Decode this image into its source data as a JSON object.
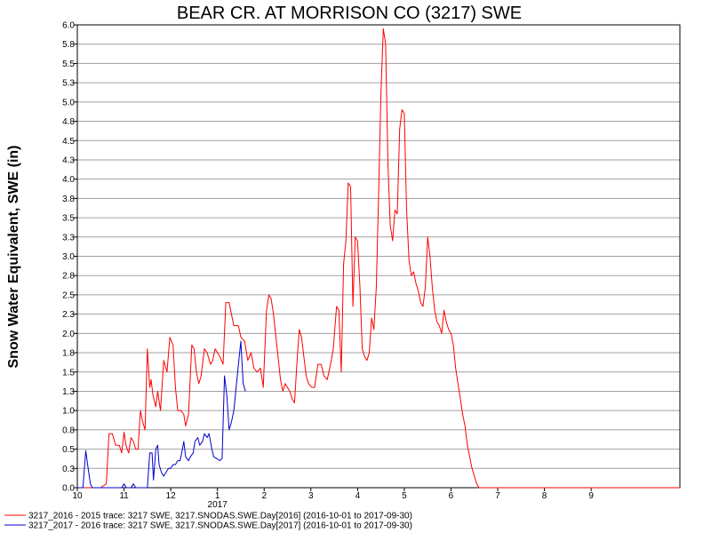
{
  "chart_data": {
    "type": "line",
    "title": "BEAR CR. AT MORRISON CO (3217) SWE",
    "ylabel": "Snow Water Equivalent, SWE (in)",
    "xlabel": "",
    "ylim": [
      0,
      6.0
    ],
    "xlim_month_index": [
      10,
      22.9
    ],
    "y_tick_labels": [
      "0.0",
      "0.3",
      "0.5",
      "0.8",
      "1.0",
      "1.3",
      "1.5",
      "1.8",
      "2.0",
      "2.3",
      "2.5",
      "2.8",
      "3.0",
      "3.3",
      "3.5",
      "3.8",
      "4.0",
      "4.3",
      "4.5",
      "4.8",
      "5.0",
      "5.3",
      "5.5",
      "5.8",
      "6.0"
    ],
    "x_ticks": [
      {
        "x": 10,
        "label": "10"
      },
      {
        "x": 11,
        "label": "11"
      },
      {
        "x": 12,
        "label": "12"
      },
      {
        "x": 13,
        "label": "1"
      },
      {
        "x": 14,
        "label": "2"
      },
      {
        "x": 15,
        "label": "3"
      },
      {
        "x": 16,
        "label": "4"
      },
      {
        "x": 17,
        "label": "5"
      },
      {
        "x": 18,
        "label": "6"
      },
      {
        "x": 19,
        "label": "7"
      },
      {
        "x": 20,
        "label": "8"
      },
      {
        "x": 21,
        "label": "9"
      }
    ],
    "year_label": {
      "x": 13,
      "label": "2017"
    },
    "grid": true,
    "legend_position": "bottom",
    "series": [
      {
        "name": "3217_2016 - 2015 trace: 3217 SWE, 3217.SNODAS.SWE.Day[2016] (2016-10-01 to 2017-09-30)",
        "color": "#ff0000",
        "points": [
          [
            10.0,
            0
          ],
          [
            10.5,
            0
          ],
          [
            10.62,
            0.05
          ],
          [
            10.68,
            0.7
          ],
          [
            10.75,
            0.7
          ],
          [
            10.82,
            0.55
          ],
          [
            10.9,
            0.55
          ],
          [
            10.95,
            0.45
          ],
          [
            11.0,
            0.72
          ],
          [
            11.04,
            0.55
          ],
          [
            11.1,
            0.45
          ],
          [
            11.15,
            0.65
          ],
          [
            11.2,
            0.6
          ],
          [
            11.25,
            0.5
          ],
          [
            11.3,
            0.5
          ],
          [
            11.35,
            1.0
          ],
          [
            11.4,
            0.85
          ],
          [
            11.45,
            0.75
          ],
          [
            11.5,
            1.8
          ],
          [
            11.55,
            1.3
          ],
          [
            11.58,
            1.4
          ],
          [
            11.62,
            1.2
          ],
          [
            11.68,
            1.05
          ],
          [
            11.72,
            1.25
          ],
          [
            11.78,
            1.0
          ],
          [
            11.85,
            1.65
          ],
          [
            11.92,
            1.5
          ],
          [
            11.98,
            1.95
          ],
          [
            12.05,
            1.85
          ],
          [
            12.1,
            1.3
          ],
          [
            12.15,
            1.0
          ],
          [
            12.22,
            1.0
          ],
          [
            12.28,
            0.95
          ],
          [
            12.32,
            0.8
          ],
          [
            12.38,
            0.95
          ],
          [
            12.45,
            1.85
          ],
          [
            12.5,
            1.8
          ],
          [
            12.55,
            1.5
          ],
          [
            12.6,
            1.35
          ],
          [
            12.65,
            1.45
          ],
          [
            12.72,
            1.8
          ],
          [
            12.78,
            1.75
          ],
          [
            12.85,
            1.6
          ],
          [
            12.9,
            1.65
          ],
          [
            12.95,
            1.8
          ],
          [
            13.0,
            1.75
          ],
          [
            13.05,
            1.7
          ],
          [
            13.12,
            1.6
          ],
          [
            13.18,
            2.4
          ],
          [
            13.25,
            2.4
          ],
          [
            13.3,
            2.25
          ],
          [
            13.35,
            2.1
          ],
          [
            13.45,
            2.1
          ],
          [
            13.5,
            1.95
          ],
          [
            13.58,
            1.9
          ],
          [
            13.65,
            1.65
          ],
          [
            13.72,
            1.75
          ],
          [
            13.78,
            1.55
          ],
          [
            13.85,
            1.5
          ],
          [
            13.92,
            1.55
          ],
          [
            13.98,
            1.3
          ],
          [
            14.05,
            2.3
          ],
          [
            14.1,
            2.5
          ],
          [
            14.15,
            2.45
          ],
          [
            14.2,
            2.25
          ],
          [
            14.28,
            1.8
          ],
          [
            14.35,
            1.4
          ],
          [
            14.4,
            1.25
          ],
          [
            14.45,
            1.35
          ],
          [
            14.5,
            1.3
          ],
          [
            14.55,
            1.25
          ],
          [
            14.6,
            1.15
          ],
          [
            14.65,
            1.1
          ],
          [
            14.7,
            1.6
          ],
          [
            14.75,
            2.05
          ],
          [
            14.8,
            1.95
          ],
          [
            14.85,
            1.7
          ],
          [
            14.9,
            1.45
          ],
          [
            14.95,
            1.35
          ],
          [
            15.02,
            1.3
          ],
          [
            15.08,
            1.3
          ],
          [
            15.15,
            1.6
          ],
          [
            15.22,
            1.6
          ],
          [
            15.28,
            1.45
          ],
          [
            15.35,
            1.4
          ],
          [
            15.42,
            1.6
          ],
          [
            15.48,
            1.8
          ],
          [
            15.55,
            2.35
          ],
          [
            15.6,
            2.3
          ],
          [
            15.65,
            1.5
          ],
          [
            15.7,
            2.9
          ],
          [
            15.75,
            3.2
          ],
          [
            15.8,
            3.95
          ],
          [
            15.85,
            3.9
          ],
          [
            15.9,
            2.35
          ],
          [
            15.95,
            3.25
          ],
          [
            16.0,
            3.2
          ],
          [
            16.05,
            2.6
          ],
          [
            16.1,
            1.8
          ],
          [
            16.15,
            1.7
          ],
          [
            16.2,
            1.65
          ],
          [
            16.25,
            1.75
          ],
          [
            16.3,
            2.2
          ],
          [
            16.35,
            2.05
          ],
          [
            16.4,
            2.6
          ],
          [
            16.45,
            3.8
          ],
          [
            16.5,
            5.1
          ],
          [
            16.55,
            5.95
          ],
          [
            16.6,
            5.75
          ],
          [
            16.65,
            4.2
          ],
          [
            16.7,
            3.4
          ],
          [
            16.75,
            3.2
          ],
          [
            16.8,
            3.6
          ],
          [
            16.85,
            3.55
          ],
          [
            16.9,
            4.65
          ],
          [
            16.95,
            4.9
          ],
          [
            17.0,
            4.85
          ],
          [
            17.05,
            3.6
          ],
          [
            17.1,
            2.95
          ],
          [
            17.15,
            2.75
          ],
          [
            17.2,
            2.8
          ],
          [
            17.25,
            2.65
          ],
          [
            17.3,
            2.55
          ],
          [
            17.35,
            2.4
          ],
          [
            17.4,
            2.35
          ],
          [
            17.45,
            2.6
          ],
          [
            17.5,
            3.25
          ],
          [
            17.55,
            3.0
          ],
          [
            17.6,
            2.6
          ],
          [
            17.65,
            2.3
          ],
          [
            17.7,
            2.15
          ],
          [
            17.75,
            2.1
          ],
          [
            17.8,
            2.0
          ],
          [
            17.85,
            2.3
          ],
          [
            17.9,
            2.15
          ],
          [
            17.95,
            2.05
          ],
          [
            18.0,
            2.0
          ],
          [
            18.05,
            1.85
          ],
          [
            18.1,
            1.55
          ],
          [
            18.15,
            1.35
          ],
          [
            18.2,
            1.15
          ],
          [
            18.25,
            0.95
          ],
          [
            18.3,
            0.8
          ],
          [
            18.35,
            0.55
          ],
          [
            18.4,
            0.4
          ],
          [
            18.45,
            0.25
          ],
          [
            18.5,
            0.15
          ],
          [
            18.55,
            0.05
          ],
          [
            18.6,
            0.0
          ],
          [
            22.9,
            0.0
          ]
        ]
      },
      {
        "name": "3217_2017 - 2016 trace: 3217 SWE, 3217.SNODAS.SWE.Day[2017] (2016-10-01 to 2017-09-30)",
        "color": "#0000cc",
        "points": [
          [
            10.0,
            0
          ],
          [
            10.12,
            0
          ],
          [
            10.18,
            0.48
          ],
          [
            10.22,
            0.3
          ],
          [
            10.28,
            0.05
          ],
          [
            10.32,
            0
          ],
          [
            10.95,
            0
          ],
          [
            11.0,
            0.05
          ],
          [
            11.05,
            0
          ],
          [
            11.15,
            0
          ],
          [
            11.2,
            0.05
          ],
          [
            11.25,
            0
          ],
          [
            11.5,
            0
          ],
          [
            11.55,
            0.45
          ],
          [
            11.6,
            0.45
          ],
          [
            11.63,
            0.1
          ],
          [
            11.68,
            0.5
          ],
          [
            11.72,
            0.55
          ],
          [
            11.75,
            0.3
          ],
          [
            11.8,
            0.2
          ],
          [
            11.85,
            0.15
          ],
          [
            11.9,
            0.2
          ],
          [
            11.95,
            0.25
          ],
          [
            12.0,
            0.25
          ],
          [
            12.05,
            0.3
          ],
          [
            12.1,
            0.3
          ],
          [
            12.15,
            0.35
          ],
          [
            12.2,
            0.35
          ],
          [
            12.25,
            0.5
          ],
          [
            12.28,
            0.6
          ],
          [
            12.32,
            0.4
          ],
          [
            12.38,
            0.35
          ],
          [
            12.42,
            0.4
          ],
          [
            12.48,
            0.45
          ],
          [
            12.52,
            0.6
          ],
          [
            12.58,
            0.65
          ],
          [
            12.62,
            0.55
          ],
          [
            12.68,
            0.6
          ],
          [
            12.72,
            0.7
          ],
          [
            12.78,
            0.65
          ],
          [
            12.82,
            0.7
          ],
          [
            12.88,
            0.5
          ],
          [
            12.92,
            0.4
          ],
          [
            12.98,
            0.38
          ],
          [
            13.05,
            0.35
          ],
          [
            13.1,
            0.38
          ],
          [
            13.15,
            1.45
          ],
          [
            13.2,
            1.2
          ],
          [
            13.25,
            0.75
          ],
          [
            13.3,
            0.85
          ],
          [
            13.35,
            1.0
          ],
          [
            13.4,
            1.3
          ],
          [
            13.45,
            1.6
          ],
          [
            13.5,
            1.9
          ],
          [
            13.55,
            1.35
          ],
          [
            13.6,
            1.25
          ]
        ]
      }
    ]
  }
}
